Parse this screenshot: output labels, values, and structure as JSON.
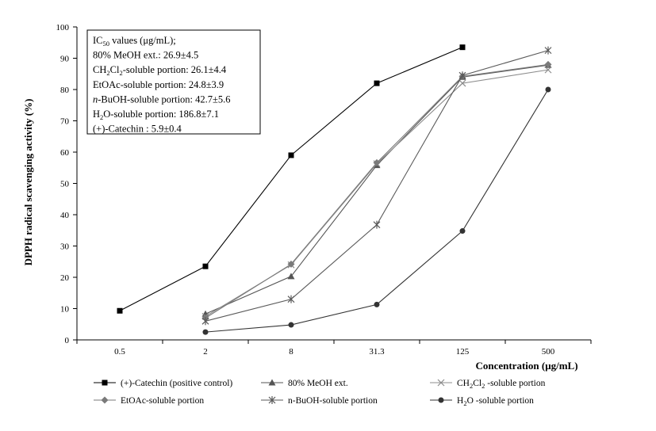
{
  "chart_data": {
    "type": "line",
    "title": "",
    "xlabel": "Concentration  (μg/mL)",
    "ylabel": "DPPH radical scavenging activity  (%)",
    "ylim": [
      0,
      100
    ],
    "yticks": [
      "0",
      "10",
      "20",
      "30",
      "40",
      "50",
      "60",
      "70",
      "80",
      "90",
      "100"
    ],
    "categories": [
      "0.5",
      "2",
      "8",
      "31.3",
      "125",
      "500"
    ],
    "grid": false,
    "legend_position": "bottom",
    "series": [
      {
        "name": "(+)-Catechin (positive control)",
        "marker": "square",
        "color": "#000000",
        "values": [
          9.3,
          23.5,
          59.0,
          82.0,
          93.5,
          null
        ]
      },
      {
        "name": "80% MeOH ext.",
        "marker": "triangle",
        "color": "#555555",
        "values": [
          null,
          8.3,
          20.3,
          55.8,
          84.0,
          87.8
        ]
      },
      {
        "name": "CH2Cl2 -soluble portion",
        "marker": "x",
        "color": "#8c8c8c",
        "values": [
          null,
          7.5,
          24.0,
          56.3,
          82.0,
          86.3
        ]
      },
      {
        "name": "EtOAc-soluble portion",
        "marker": "diamond",
        "color": "#7a7a7a",
        "values": [
          null,
          7.0,
          24.2,
          56.6,
          84.2,
          88.0
        ]
      },
      {
        "name": "n-BuOH-soluble portion",
        "marker": "star",
        "color": "#5a5a5a",
        "values": [
          null,
          6.0,
          13.0,
          36.8,
          84.5,
          92.5
        ]
      },
      {
        "name": "H2O -soluble portion",
        "marker": "circle",
        "color": "#333333",
        "values": [
          null,
          2.5,
          4.8,
          11.3,
          34.8,
          80.0
        ]
      }
    ],
    "annotation": {
      "lines": [
        {
          "segments": [
            {
              "t": "IC"
            },
            {
              "t": "50",
              "sub": true
            },
            {
              "t": " values  (μg/mL);"
            }
          ]
        },
        {
          "segments": [
            {
              "t": "80%  MeOH ext.: 26.9±4.5"
            }
          ]
        },
        {
          "segments": [
            {
              "t": "CH"
            },
            {
              "t": "2",
              "sub": true
            },
            {
              "t": "Cl"
            },
            {
              "t": "2",
              "sub": true
            },
            {
              "t": "-soluble portion:  26.1±4.4"
            }
          ]
        },
        {
          "segments": [
            {
              "t": "EtOAc-soluble  portion:  24.8±3.9"
            }
          ]
        },
        {
          "segments": [
            {
              "t": "n",
              "italic": true
            },
            {
              "t": "-BuOH-soluble  portion:  42.7±5.6"
            }
          ]
        },
        {
          "segments": [
            {
              "t": "H"
            },
            {
              "t": "2",
              "sub": true
            },
            {
              "t": "O-soluble portion:  186.8±7.1"
            }
          ]
        },
        {
          "segments": [
            {
              "t": "(+)-Catechin  : 5.9±0.4"
            }
          ]
        }
      ]
    },
    "legend": [
      {
        "series": 0,
        "segments": [
          {
            "t": "(+)-Catechin (positive control)"
          }
        ]
      },
      {
        "series": 1,
        "segments": [
          {
            "t": "80% MeOH ext."
          }
        ]
      },
      {
        "series": 2,
        "segments": [
          {
            "t": "CH"
          },
          {
            "t": "2",
            "sub": true
          },
          {
            "t": "Cl"
          },
          {
            "t": "2",
            "sub": true
          },
          {
            "t": "  -soluble portion"
          }
        ]
      },
      {
        "series": 3,
        "segments": [
          {
            "t": "EtOAc-soluble portion"
          }
        ]
      },
      {
        "series": 4,
        "segments": [
          {
            "t": "n-BuOH-soluble portion"
          }
        ]
      },
      {
        "series": 5,
        "segments": [
          {
            "t": "H"
          },
          {
            "t": "2",
            "sub": true
          },
          {
            "t": "O  -soluble portion"
          }
        ]
      }
    ]
  }
}
